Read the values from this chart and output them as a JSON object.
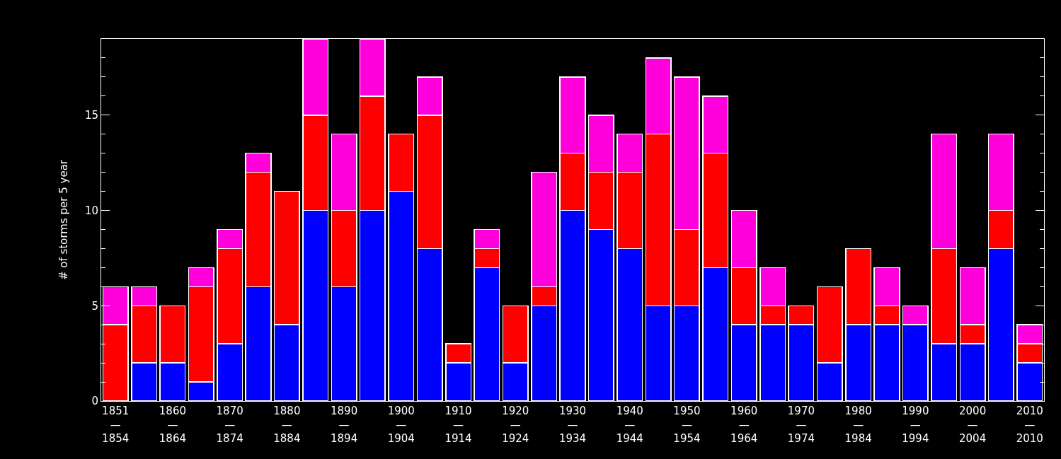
{
  "chart_data": {
    "type": "bar",
    "stacked": true,
    "ylabel": "# of storms per 5 year",
    "categories": [
      "1851\n—\n1854",
      null,
      "1860\n—\n1864",
      null,
      "1870\n—\n1874",
      null,
      "1880\n—\n1884",
      null,
      "1890\n—\n1894",
      null,
      "1900\n—\n1904",
      null,
      "1910\n—\n1914",
      null,
      "1920\n—\n1924",
      null,
      "1930\n—\n1934",
      null,
      "1940\n—\n1944",
      null,
      "1950\n—\n1954",
      null,
      "1960\n—\n1964",
      null,
      "1970\n—\n1974",
      null,
      "1980\n—\n1984",
      null,
      "1990\n—\n1994",
      null,
      "2000\n—\n2004",
      null,
      "2010\n—\n2010"
    ],
    "series": [
      {
        "color": "#0000ff",
        "values": [
          0,
          2,
          2,
          1,
          3,
          6,
          4,
          10,
          6,
          10,
          11,
          8,
          2,
          7,
          2,
          5,
          10,
          9,
          8,
          5,
          5,
          7,
          4,
          4,
          4,
          2,
          4,
          4,
          4,
          3,
          3,
          8,
          2
        ]
      },
      {
        "color": "#ff0000",
        "values": [
          4,
          3,
          3,
          5,
          5,
          6,
          7,
          5,
          4,
          6,
          3,
          7,
          1,
          1,
          3,
          1,
          3,
          3,
          4,
          9,
          4,
          6,
          3,
          1,
          1,
          4,
          4,
          1,
          0,
          5,
          1,
          2,
          1
        ]
      },
      {
        "color": "#ff00dd",
        "values": [
          2,
          1,
          0,
          1,
          1,
          1,
          0,
          4,
          4,
          3,
          0,
          2,
          0,
          1,
          0,
          6,
          4,
          3,
          2,
          4,
          8,
          3,
          3,
          2,
          0,
          0,
          0,
          2,
          1,
          6,
          3,
          4,
          1
        ]
      }
    ],
    "ylim": [
      0,
      19
    ],
    "yticks": [
      0,
      5,
      10,
      15
    ],
    "grid": false
  }
}
